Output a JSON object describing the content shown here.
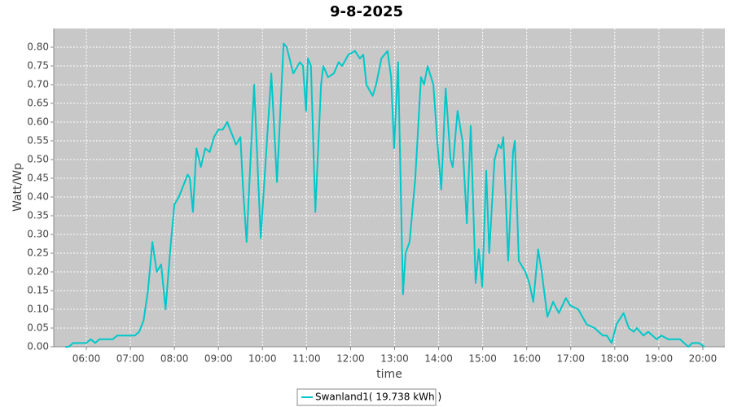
{
  "chart_data": {
    "type": "line",
    "title": "9-8-2025",
    "x_label": "time",
    "y_label": "Watt/Wp",
    "x": [
      5.52,
      5.6,
      5.7,
      5.8,
      5.9,
      6.0,
      6.1,
      6.2,
      6.3,
      6.4,
      6.5,
      6.6,
      6.7,
      6.8,
      6.9,
      7.0,
      7.1,
      7.2,
      7.3,
      7.4,
      7.5,
      7.6,
      7.7,
      7.8,
      7.9,
      8.0,
      8.1,
      8.2,
      8.3,
      8.35,
      8.42,
      8.5,
      8.6,
      8.7,
      8.8,
      8.9,
      9.0,
      9.1,
      9.2,
      9.3,
      9.4,
      9.5,
      9.56,
      9.64,
      9.81,
      9.96,
      10.2,
      10.33,
      10.48,
      10.55,
      10.7,
      10.85,
      10.92,
      10.99,
      11.03,
      11.1,
      11.2,
      11.33,
      11.38,
      11.49,
      11.62,
      11.73,
      11.81,
      11.95,
      12.1,
      12.21,
      12.29,
      12.36,
      12.5,
      12.58,
      12.7,
      12.84,
      12.92,
      12.99,
      13.08,
      13.19,
      13.25,
      13.34,
      13.47,
      13.6,
      13.67,
      13.75,
      13.88,
      13.97,
      14.06,
      14.16,
      14.27,
      14.32,
      14.43,
      14.54,
      14.64,
      14.73,
      14.84,
      14.91,
      14.99,
      15.08,
      15.15,
      15.27,
      15.36,
      15.42,
      15.47,
      15.58,
      15.69,
      15.73,
      15.82,
      15.97,
      16.06,
      16.15,
      16.26,
      16.34,
      16.47,
      16.6,
      16.73,
      16.89,
      16.99,
      17.17,
      17.36,
      17.54,
      17.73,
      17.82,
      17.93,
      18.04,
      18.2,
      18.32,
      18.43,
      18.5,
      18.65,
      18.76,
      18.95,
      19.06,
      19.21,
      19.48,
      19.67,
      19.76,
      19.91,
      20.04
    ],
    "series": [
      {
        "name": "Swanland1( 19.738 kWh )",
        "color": "#00c8c8",
        "values": [
          0.0,
          0.0,
          0.01,
          0.01,
          0.01,
          0.01,
          0.02,
          0.01,
          0.02,
          0.02,
          0.02,
          0.02,
          0.03,
          0.03,
          0.03,
          0.03,
          0.03,
          0.04,
          0.07,
          0.15,
          0.28,
          0.2,
          0.22,
          0.1,
          0.25,
          0.38,
          0.4,
          0.43,
          0.46,
          0.45,
          0.36,
          0.53,
          0.48,
          0.53,
          0.52,
          0.56,
          0.58,
          0.58,
          0.6,
          0.57,
          0.54,
          0.56,
          0.42,
          0.28,
          0.7,
          0.29,
          0.73,
          0.44,
          0.81,
          0.8,
          0.73,
          0.76,
          0.75,
          0.63,
          0.77,
          0.75,
          0.36,
          0.7,
          0.75,
          0.72,
          0.73,
          0.76,
          0.75,
          0.78,
          0.79,
          0.77,
          0.78,
          0.7,
          0.67,
          0.7,
          0.77,
          0.79,
          0.72,
          0.53,
          0.76,
          0.14,
          0.25,
          0.28,
          0.45,
          0.72,
          0.7,
          0.75,
          0.7,
          0.55,
          0.42,
          0.69,
          0.5,
          0.48,
          0.63,
          0.55,
          0.33,
          0.59,
          0.17,
          0.26,
          0.16,
          0.47,
          0.25,
          0.5,
          0.54,
          0.53,
          0.56,
          0.23,
          0.52,
          0.55,
          0.23,
          0.2,
          0.17,
          0.12,
          0.26,
          0.2,
          0.08,
          0.12,
          0.09,
          0.13,
          0.11,
          0.1,
          0.06,
          0.05,
          0.03,
          0.03,
          0.01,
          0.06,
          0.09,
          0.05,
          0.04,
          0.05,
          0.03,
          0.04,
          0.02,
          0.03,
          0.02,
          0.02,
          0.0,
          0.01,
          0.01,
          0.0
        ]
      }
    ],
    "xlim": [
      5.26,
      20.5
    ],
    "xticks": [
      {
        "value": 6,
        "label": "06:00"
      },
      {
        "value": 7,
        "label": "07:00"
      },
      {
        "value": 8,
        "label": "08:00"
      },
      {
        "value": 9,
        "label": "09:00"
      },
      {
        "value": 10,
        "label": "10:00"
      },
      {
        "value": 11,
        "label": "11:00"
      },
      {
        "value": 12,
        "label": "12:00"
      },
      {
        "value": 13,
        "label": "13:00"
      },
      {
        "value": 14,
        "label": "14:00"
      },
      {
        "value": 15,
        "label": "15:00"
      },
      {
        "value": 16,
        "label": "16:00"
      },
      {
        "value": 17,
        "label": "17:00"
      },
      {
        "value": 18,
        "label": "18:00"
      },
      {
        "value": 19,
        "label": "19:00"
      },
      {
        "value": 20,
        "label": "20:00"
      }
    ],
    "ylim": [
      0,
      0.85
    ],
    "yticks": [
      {
        "value": 0,
        "label": "0.00"
      },
      {
        "value": 0.05,
        "label": "0.05"
      },
      {
        "value": 0.1,
        "label": "0.10"
      },
      {
        "value": 0.15,
        "label": "0.15"
      },
      {
        "value": 0.2,
        "label": "0.20"
      },
      {
        "value": 0.25,
        "label": "0.25"
      },
      {
        "value": 0.3,
        "label": "0.30"
      },
      {
        "value": 0.35,
        "label": "0.35"
      },
      {
        "value": 0.4,
        "label": "0.40"
      },
      {
        "value": 0.45,
        "label": "0.45"
      },
      {
        "value": 0.5,
        "label": "0.50"
      },
      {
        "value": 0.55,
        "label": "0.55"
      },
      {
        "value": 0.6,
        "label": "0.60"
      },
      {
        "value": 0.65,
        "label": "0.65"
      },
      {
        "value": 0.7,
        "label": "0.70"
      },
      {
        "value": 0.75,
        "label": "0.75"
      },
      {
        "value": 0.8,
        "label": "0.80"
      }
    ],
    "grid": true,
    "legend": "bottom"
  }
}
